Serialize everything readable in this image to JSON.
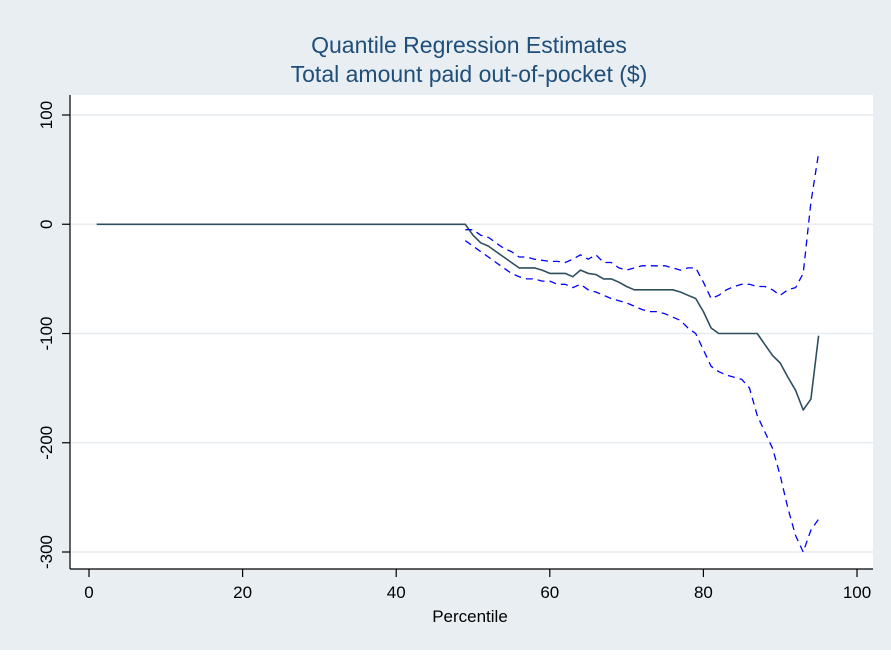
{
  "chart_data": {
    "type": "line",
    "title": [
      "Quantile Regression Estimates",
      "Total amount paid out-of-pocket ($)"
    ],
    "xlabel": "Percentile",
    "ylabel": "",
    "xlim": [
      0,
      100
    ],
    "ylim": [
      -300,
      100
    ],
    "xticks": [
      0,
      20,
      40,
      60,
      80,
      100
    ],
    "yticks": [
      100,
      0,
      -100,
      -200,
      -300
    ],
    "grid": true,
    "legend": "none",
    "colors": {
      "background": "#e8eef2",
      "plot_area": "#ffffff",
      "grid": "#e6ecf0",
      "estimate": "#2f4f5f",
      "ci": "#0000ff",
      "title": "#1f4e79"
    },
    "series": [
      {
        "style": "solid",
        "x": [
          1,
          49,
          50,
          51,
          52,
          53,
          54,
          55,
          56,
          57,
          58,
          59,
          60,
          61,
          62,
          63,
          64,
          65,
          66,
          67,
          68,
          69,
          70,
          71,
          72,
          73,
          74,
          75,
          76,
          77,
          78,
          79,
          80,
          81,
          82,
          83,
          84,
          85,
          86,
          87,
          88,
          89,
          90,
          91,
          92,
          93,
          94,
          95
        ],
        "y": [
          0,
          0,
          -10,
          -17,
          -20,
          -25,
          -30,
          -35,
          -40,
          -40,
          -40,
          -42,
          -45,
          -45,
          -45,
          -48,
          -42,
          -45,
          -46,
          -50,
          -50,
          -53,
          -57,
          -60,
          -60,
          -60,
          -60,
          -60,
          -60,
          -62,
          -65,
          -68,
          -80,
          -95,
          -100,
          -100,
          -100,
          -100,
          -100,
          -100,
          -110,
          -120,
          -127,
          -140,
          -152,
          -170,
          -160,
          -102
        ]
      },
      {
        "style": "dashed",
        "x": [
          49,
          50,
          51,
          52,
          53,
          54,
          55,
          56,
          57,
          58,
          59,
          60,
          61,
          62,
          63,
          64,
          65,
          66,
          67,
          68,
          69,
          70,
          71,
          72,
          73,
          74,
          75,
          76,
          77,
          78,
          79,
          80,
          81,
          82,
          83,
          84,
          85,
          86,
          87,
          88,
          89,
          90,
          91,
          92,
          93,
          94,
          95
        ],
        "y": [
          -5,
          -5,
          -10,
          -12,
          -17,
          -22,
          -25,
          -30,
          -30,
          -32,
          -33,
          -34,
          -34,
          -35,
          -32,
          -28,
          -32,
          -28,
          -35,
          -35,
          -40,
          -42,
          -40,
          -38,
          -38,
          -38,
          -38,
          -40,
          -42,
          -40,
          -40,
          -53,
          -68,
          -65,
          -60,
          -57,
          -55,
          -55,
          -57,
          -57,
          -60,
          -65,
          -60,
          -58,
          -45,
          20,
          65
        ]
      },
      {
        "style": "dashed",
        "x": [
          49,
          50,
          51,
          52,
          53,
          54,
          55,
          56,
          57,
          58,
          59,
          60,
          61,
          62,
          63,
          64,
          65,
          66,
          67,
          68,
          69,
          70,
          71,
          72,
          73,
          74,
          75,
          76,
          77,
          78,
          79,
          80,
          81,
          82,
          83,
          84,
          85,
          86,
          87,
          88,
          89,
          90,
          91,
          92,
          93,
          94,
          95
        ],
        "y": [
          -15,
          -20,
          -25,
          -30,
          -35,
          -40,
          -45,
          -48,
          -50,
          -50,
          -52,
          -52,
          -55,
          -55,
          -58,
          -55,
          -60,
          -62,
          -65,
          -68,
          -70,
          -72,
          -75,
          -78,
          -80,
          -80,
          -82,
          -85,
          -88,
          -95,
          -100,
          -115,
          -130,
          -135,
          -138,
          -140,
          -142,
          -150,
          -175,
          -190,
          -205,
          -230,
          -260,
          -285,
          -300,
          -280,
          -270
        ]
      }
    ]
  }
}
